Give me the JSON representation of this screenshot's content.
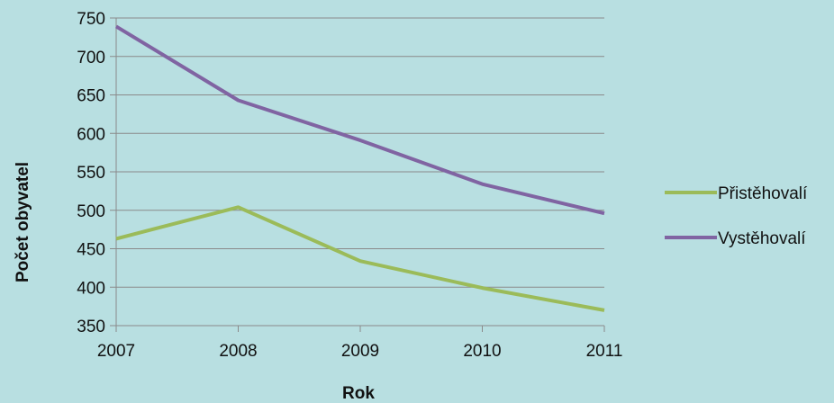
{
  "chart_data": {
    "type": "line",
    "title": "",
    "xlabel": "Rok",
    "ylabel": "Počet obyvatel",
    "x": [
      2007,
      2008,
      2009,
      2010,
      2011
    ],
    "ylim": [
      350,
      750
    ],
    "yticks": [
      350,
      400,
      450,
      500,
      550,
      600,
      650,
      700,
      750
    ],
    "grid": true,
    "legend_position": "right",
    "series": [
      {
        "name": "Přistěhovalí",
        "color": "#9bbb59",
        "values": [
          463,
          504,
          434,
          399,
          370
        ]
      },
      {
        "name": "Vystěhovalí",
        "color": "#8064a2",
        "values": [
          739,
          643,
          591,
          534,
          496
        ]
      }
    ]
  }
}
